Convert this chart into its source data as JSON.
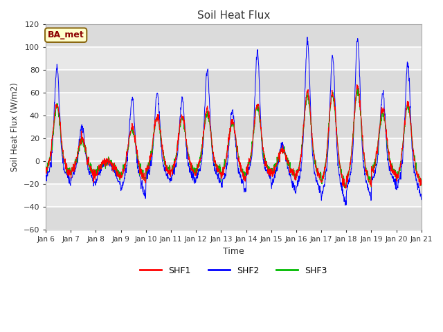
{
  "title": "Soil Heat Flux",
  "xlabel": "Time",
  "ylabel": "Soil Heat Flux (W/m2)",
  "ylim": [
    -60,
    120
  ],
  "yticks": [
    -60,
    -40,
    -20,
    0,
    20,
    40,
    60,
    80,
    100,
    120
  ],
  "x_tick_labels": [
    "Jan 6",
    "Jan 7",
    "Jan 8",
    "Jan 9",
    "Jan 10",
    "Jan 11",
    "Jan 12",
    "Jan 13",
    "Jan 14",
    "Jan 15",
    "Jan 16",
    "Jan 17",
    "Jan 18",
    "Jan 19",
    "Jan 20",
    "Jan 21"
  ],
  "series_colors": {
    "SHF1": "#ff0000",
    "SHF2": "#0000ff",
    "SHF3": "#00bb00"
  },
  "legend_label": "BA_met",
  "legend_box_color": "#ffffcc",
  "legend_box_border": "#8b6914",
  "bg_color": "#e8e8e8",
  "grid_color": "#ffffff",
  "font_color": "#333333"
}
